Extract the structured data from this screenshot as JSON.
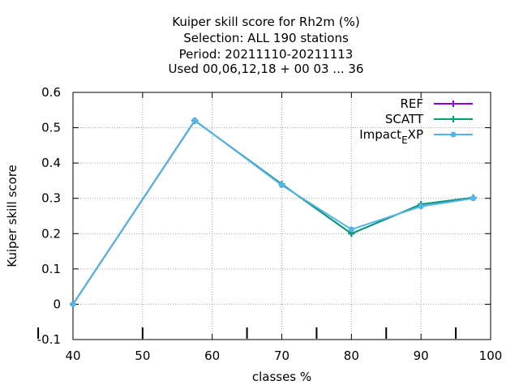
{
  "chart_data": {
    "type": "line",
    "title_lines": [
      "Kuiper skill score  for Rh2m (%)",
      "Selection: ALL    190 stations",
      "Period: 20211110-20211113",
      "Used  00,06,12,18 + 00 03 ... 36"
    ],
    "xlabel": "classes %",
    "ylabel": "Kuiper skill score",
    "xlim": [
      40,
      100
    ],
    "ylim": [
      -0.1,
      0.6
    ],
    "x_ticks": [
      "40",
      "50",
      "60",
      "70",
      "80",
      "90",
      "100"
    ],
    "y_ticks": [
      "-0.1",
      "0",
      "0.1",
      "0.2",
      "0.3",
      "0.4",
      "0.5",
      "0.6"
    ],
    "grid": true,
    "legend_position": "top-right",
    "x": [
      40,
      57.5,
      70,
      80,
      90,
      97.5
    ],
    "series": [
      {
        "name": "REF",
        "color": "#9400d3",
        "marker": "plus",
        "values": [
          0,
          0.52,
          0.34,
          0.2,
          0.283,
          0.302
        ]
      },
      {
        "name": "SCATT",
        "color": "#009e73",
        "marker": "plus",
        "values": [
          0,
          0.52,
          0.34,
          0.2,
          0.283,
          0.302
        ]
      },
      {
        "name": "Impact_EXP",
        "legend_main": "Impact",
        "legend_sub": "E",
        "legend_rest": "XP",
        "color": "#56b4e9",
        "marker": "circle",
        "values": [
          0,
          0.521,
          0.337,
          0.212,
          0.277,
          0.3
        ]
      }
    ],
    "bottom_bars_x": [
      35,
      50,
      65,
      75,
      85,
      95
    ]
  }
}
